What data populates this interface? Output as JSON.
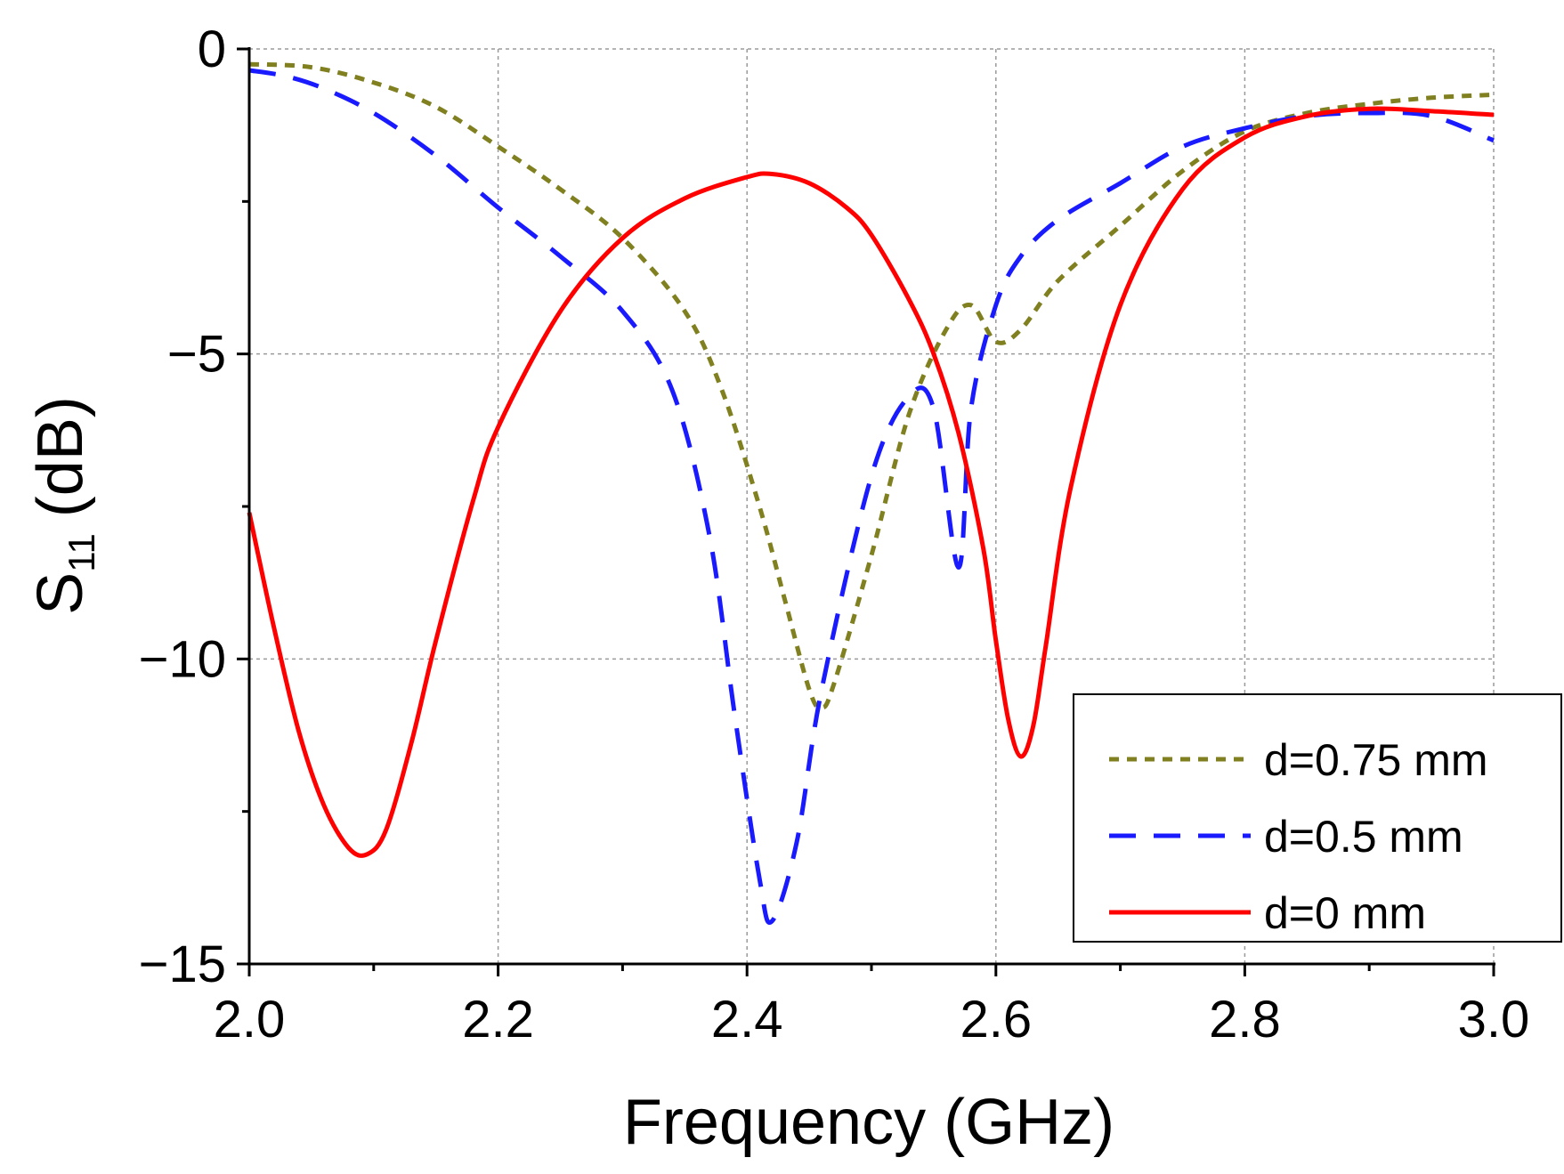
{
  "chart_data": {
    "type": "line",
    "xlabel": "Frequency (GHz)",
    "ylabel_main": "S",
    "ylabel_sub": "11",
    "ylabel_unit": "(dB)",
    "xlim": [
      2.0,
      3.0
    ],
    "ylim": [
      -15,
      0
    ],
    "xticks": [
      "2.0",
      "2.2",
      "2.4",
      "2.6",
      "2.8",
      "3.0"
    ],
    "yticks": [
      "0",
      "−5",
      "−10",
      "−15"
    ],
    "grid": true,
    "legend_position": "bottom-right",
    "series": [
      {
        "name": "d=0.75 mm",
        "color": "#808020",
        "style": "dotted",
        "x": [
          2.0,
          2.05,
          2.1,
          2.15,
          2.2,
          2.25,
          2.3,
          2.35,
          2.38,
          2.41,
          2.43,
          2.45,
          2.46,
          2.47,
          2.5,
          2.53,
          2.56,
          2.58,
          2.6,
          2.62,
          2.65,
          2.7,
          2.75,
          2.8,
          2.85,
          2.9,
          2.95,
          3.0
        ],
        "y": [
          -0.25,
          -0.3,
          -0.55,
          -0.95,
          -1.6,
          -2.3,
          -3.1,
          -4.3,
          -5.6,
          -7.5,
          -9.0,
          -10.5,
          -10.8,
          -10.4,
          -8.3,
          -6.0,
          -4.6,
          -4.2,
          -4.8,
          -4.6,
          -3.8,
          -2.9,
          -2.0,
          -1.35,
          -1.05,
          -0.9,
          -0.8,
          -0.75
        ]
      },
      {
        "name": "d=0.5 mm",
        "color": "#1a1aff",
        "style": "dashed",
        "x": [
          2.0,
          2.03,
          2.06,
          2.1,
          2.15,
          2.2,
          2.25,
          2.3,
          2.34,
          2.37,
          2.39,
          2.41,
          2.42,
          2.44,
          2.46,
          2.5,
          2.53,
          2.55,
          2.57,
          2.58,
          2.6,
          2.62,
          2.65,
          2.7,
          2.75,
          2.8,
          2.85,
          2.9,
          2.95,
          3.0
        ],
        "y": [
          -0.35,
          -0.45,
          -0.65,
          -1.05,
          -1.75,
          -2.6,
          -3.4,
          -4.3,
          -5.6,
          -8.0,
          -10.9,
          -13.6,
          -14.3,
          -13.0,
          -10.5,
          -7.0,
          -5.7,
          -5.9,
          -8.5,
          -5.9,
          -4.2,
          -3.4,
          -2.8,
          -2.2,
          -1.6,
          -1.3,
          -1.1,
          -1.05,
          -1.1,
          -1.5
        ]
      },
      {
        "name": "d=0 mm",
        "color": "#ff0000",
        "style": "solid",
        "x": [
          2.0,
          2.02,
          2.04,
          2.06,
          2.08,
          2.095,
          2.11,
          2.13,
          2.15,
          2.18,
          2.2,
          2.25,
          2.3,
          2.35,
          2.4,
          2.42,
          2.45,
          2.48,
          2.5,
          2.53,
          2.55,
          2.57,
          2.59,
          2.6,
          2.61,
          2.62,
          2.63,
          2.64,
          2.66,
          2.7,
          2.75,
          2.8,
          2.85,
          2.9,
          2.95,
          3.0
        ],
        "y": [
          -7.6,
          -9.5,
          -11.2,
          -12.4,
          -13.1,
          -13.2,
          -12.8,
          -11.4,
          -9.7,
          -7.4,
          -6.2,
          -4.3,
          -3.1,
          -2.45,
          -2.1,
          -2.05,
          -2.2,
          -2.6,
          -3.05,
          -4.1,
          -5.0,
          -6.3,
          -8.2,
          -9.7,
          -11.0,
          -11.6,
          -11.1,
          -9.8,
          -7.2,
          -4.2,
          -2.3,
          -1.45,
          -1.1,
          -0.98,
          -1.02,
          -1.08
        ]
      }
    ]
  }
}
